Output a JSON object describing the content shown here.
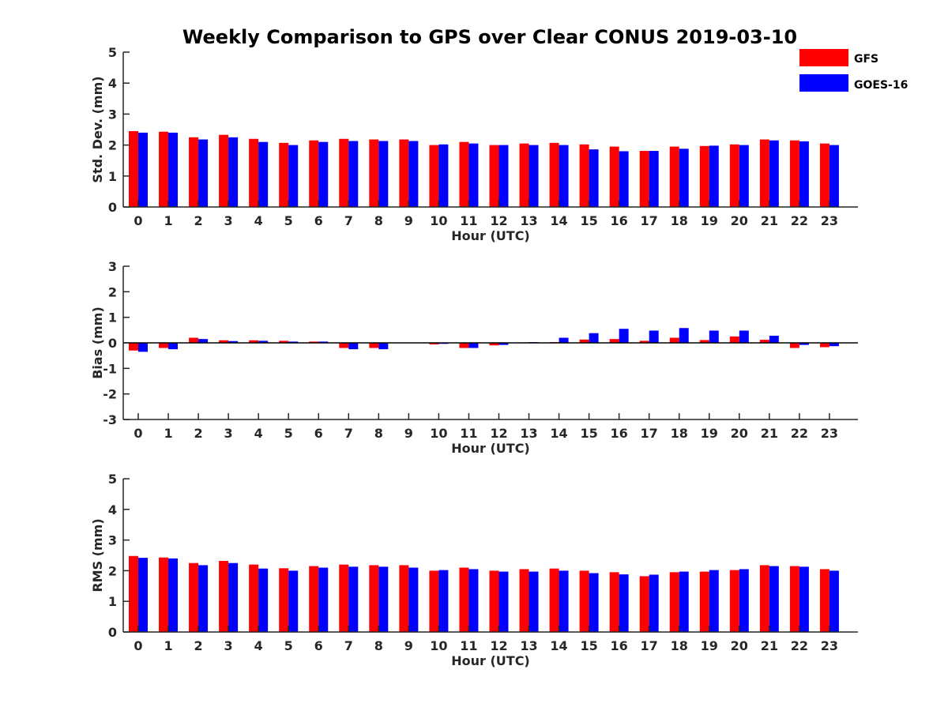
{
  "title": "Weekly Comparison to GPS over Clear CONUS 2019-03-10",
  "legend": [
    {
      "name": "GFS",
      "color": "#ff0000"
    },
    {
      "name": "GOES-16",
      "color": "#0000ff"
    }
  ],
  "chart_data": [
    {
      "type": "bar",
      "ylabel": "Std. Dev. (mm)",
      "xlabel": "Hour (UTC)",
      "ylim": [
        0,
        5
      ],
      "yticks": [
        0,
        1,
        2,
        3,
        4,
        5
      ],
      "categories": [
        "0",
        "1",
        "2",
        "3",
        "4",
        "5",
        "6",
        "7",
        "8",
        "9",
        "10",
        "11",
        "12",
        "13",
        "14",
        "15",
        "16",
        "17",
        "18",
        "19",
        "20",
        "21",
        "22",
        "23"
      ],
      "series": [
        {
          "name": "GFS",
          "values": [
            2.45,
            2.43,
            2.25,
            2.33,
            2.2,
            2.07,
            2.15,
            2.2,
            2.18,
            2.18,
            2.0,
            2.1,
            2.0,
            2.05,
            2.07,
            2.02,
            1.95,
            1.81,
            1.95,
            1.97,
            2.02,
            2.18,
            2.15,
            2.05
          ]
        },
        {
          "name": "GOES-16",
          "values": [
            2.4,
            2.4,
            2.18,
            2.25,
            2.1,
            2.0,
            2.1,
            2.13,
            2.13,
            2.13,
            2.02,
            2.05,
            2.0,
            2.0,
            2.0,
            1.86,
            1.8,
            1.81,
            1.88,
            1.98,
            2.0,
            2.15,
            2.12,
            2.0
          ]
        }
      ]
    },
    {
      "type": "bar",
      "ylabel": "Bias (mm)",
      "xlabel": "Hour (UTC)",
      "ylim": [
        -3,
        3
      ],
      "yticks": [
        -3,
        -2,
        -1,
        0,
        1,
        2,
        3
      ],
      "categories": [
        "0",
        "1",
        "2",
        "3",
        "4",
        "5",
        "6",
        "7",
        "8",
        "9",
        "10",
        "11",
        "12",
        "13",
        "14",
        "15",
        "16",
        "17",
        "18",
        "19",
        "20",
        "21",
        "22",
        "23"
      ],
      "series": [
        {
          "name": "GFS",
          "values": [
            -0.3,
            -0.2,
            0.2,
            0.1,
            0.1,
            0.08,
            0.05,
            -0.2,
            -0.2,
            0.0,
            -0.06,
            -0.2,
            -0.1,
            0.02,
            0.03,
            0.13,
            0.15,
            0.08,
            0.2,
            0.11,
            0.25,
            0.12,
            -0.2,
            -0.17
          ]
        },
        {
          "name": "GOES-16",
          "values": [
            -0.35,
            -0.25,
            0.15,
            0.07,
            0.08,
            0.05,
            0.05,
            -0.25,
            -0.25,
            0.0,
            -0.04,
            -0.2,
            -0.08,
            0.03,
            0.2,
            0.38,
            0.55,
            0.48,
            0.58,
            0.48,
            0.48,
            0.28,
            -0.08,
            -0.13
          ]
        }
      ]
    },
    {
      "type": "bar",
      "ylabel": "RMS (mm)",
      "xlabel": "Hour (UTC)",
      "ylim": [
        0,
        5
      ],
      "yticks": [
        0,
        1,
        2,
        3,
        4,
        5
      ],
      "categories": [
        "0",
        "1",
        "2",
        "3",
        "4",
        "5",
        "6",
        "7",
        "8",
        "9",
        "10",
        "11",
        "12",
        "13",
        "14",
        "15",
        "16",
        "17",
        "18",
        "19",
        "20",
        "21",
        "22",
        "23"
      ],
      "series": [
        {
          "name": "GFS",
          "values": [
            2.48,
            2.43,
            2.25,
            2.32,
            2.2,
            2.08,
            2.15,
            2.2,
            2.18,
            2.18,
            2.0,
            2.1,
            2.0,
            2.05,
            2.07,
            2.0,
            1.95,
            1.82,
            1.95,
            1.97,
            2.02,
            2.18,
            2.15,
            2.05
          ]
        },
        {
          "name": "GOES-16",
          "values": [
            2.42,
            2.4,
            2.18,
            2.25,
            2.07,
            2.0,
            2.1,
            2.13,
            2.13,
            2.1,
            2.02,
            2.05,
            1.97,
            1.97,
            2.0,
            1.92,
            1.88,
            1.87,
            1.97,
            2.02,
            2.05,
            2.15,
            2.13,
            2.0
          ]
        }
      ]
    }
  ]
}
